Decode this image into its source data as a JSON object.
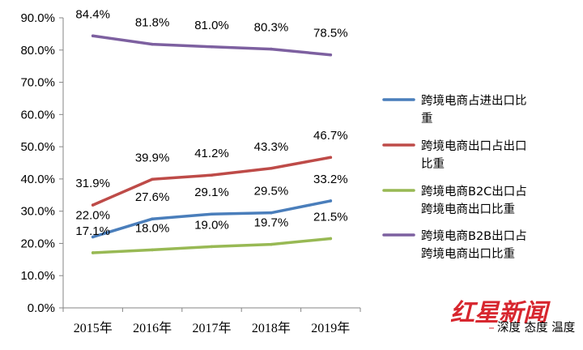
{
  "chart_data": {
    "type": "line",
    "categories": [
      "2015年",
      "2016年",
      "2017年",
      "2018年",
      "2019年"
    ],
    "ylim": [
      0,
      90
    ],
    "yticks": [
      "0.0%",
      "10.0%",
      "20.0%",
      "30.0%",
      "40.0%",
      "50.0%",
      "60.0%",
      "70.0%",
      "80.0%",
      "90.0%"
    ],
    "grid": false,
    "legend_position": "right",
    "series": [
      {
        "name": "跨境电商占进出口比重",
        "color": "#4a7ebb",
        "values": [
          22.0,
          27.6,
          29.1,
          29.5,
          33.2
        ],
        "labels": [
          "22.0%",
          "27.6%",
          "29.1%",
          "29.5%",
          "33.2%"
        ]
      },
      {
        "name": "跨境电商出口占出口比重",
        "color": "#be4b48",
        "values": [
          31.9,
          39.9,
          41.2,
          43.3,
          46.7
        ],
        "labels": [
          "31.9%",
          "39.9%",
          "41.2%",
          "43.3%",
          "46.7%"
        ]
      },
      {
        "name": "跨境电商B2C出口占跨境电商出口比重",
        "color": "#98b954",
        "values": [
          17.1,
          18.0,
          19.0,
          19.7,
          21.5
        ],
        "labels": [
          "17.1%",
          "18.0%",
          "19.0%",
          "19.7%",
          "21.5%"
        ]
      },
      {
        "name": "跨境电商B2B出口占跨境电商出口比重",
        "color": "#7d60a0",
        "values": [
          84.4,
          81.8,
          81.0,
          80.3,
          78.5
        ],
        "labels": [
          "84.4%",
          "81.8%",
          "81.0%",
          "80.3%",
          "78.5%"
        ]
      }
    ]
  },
  "legend_lines": [
    [
      "跨境电商占进出口比",
      "重"
    ],
    [
      "跨境电商出口占出口",
      "比重"
    ],
    [
      "跨境电商B2C出口占",
      "跨境电商出口比重"
    ],
    [
      "跨境电商B2B出口占",
      "跨境电商出口比重"
    ]
  ],
  "watermark": {
    "brand": "红星新闻",
    "slogan": "深度 态度 温度",
    "color": "#d7262e"
  }
}
